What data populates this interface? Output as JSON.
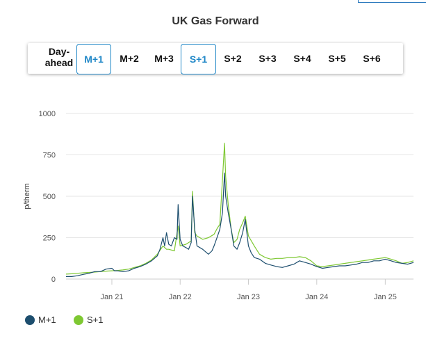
{
  "title": "UK Gas Forward",
  "tabs": [
    {
      "label": "Day-\nahead",
      "active": false
    },
    {
      "label": "M+1",
      "active": true
    },
    {
      "label": "M+2",
      "active": false
    },
    {
      "label": "M+3",
      "active": false
    },
    {
      "label": "S+1",
      "active": true
    },
    {
      "label": "S+2",
      "active": false
    },
    {
      "label": "S+3",
      "active": false
    },
    {
      "label": "S+4",
      "active": false
    },
    {
      "label": "S+5",
      "active": false
    },
    {
      "label": "S+6",
      "active": false
    }
  ],
  "colors": {
    "accent": "#1f87c7",
    "m1": "#1d4e6e",
    "s1": "#7ec832",
    "grid": "#e6e6e6"
  },
  "legend": [
    {
      "name": "M+1",
      "color": "#1d4e6e"
    },
    {
      "name": "S+1",
      "color": "#7ec832"
    }
  ],
  "chart_data": {
    "type": "line",
    "title": "UK Gas Forward",
    "ylabel": "p/therm",
    "xlabel": "",
    "ylim": [
      0,
      1000
    ],
    "xlim": [
      "2020-05-01",
      "2025-06-01"
    ],
    "yticks": [
      0,
      250,
      500,
      750,
      1000
    ],
    "xticks": [
      {
        "date": "2021-01-01",
        "label": "Jan 21"
      },
      {
        "date": "2022-01-01",
        "label": "Jan 22"
      },
      {
        "date": "2023-01-01",
        "label": "Jan 23"
      },
      {
        "date": "2024-01-01",
        "label": "Jan 24"
      },
      {
        "date": "2025-01-01",
        "label": "Jan 25"
      }
    ],
    "grid": true,
    "legend_position": "bottom-left",
    "series": [
      {
        "name": "M+1",
        "x": [
          "2020-05-01",
          "2020-06-01",
          "2020-07-01",
          "2020-08-01",
          "2020-09-01",
          "2020-10-01",
          "2020-11-01",
          "2020-12-01",
          "2021-01-01",
          "2021-01-15",
          "2021-02-01",
          "2021-03-01",
          "2021-04-01",
          "2021-05-01",
          "2021-06-01",
          "2021-07-01",
          "2021-08-01",
          "2021-09-01",
          "2021-09-15",
          "2021-10-01",
          "2021-10-10",
          "2021-10-20",
          "2021-11-01",
          "2021-11-15",
          "2021-12-01",
          "2021-12-15",
          "2021-12-21",
          "2022-01-01",
          "2022-01-15",
          "2022-02-01",
          "2022-02-15",
          "2022-03-01",
          "2022-03-08",
          "2022-03-20",
          "2022-04-01",
          "2022-05-01",
          "2022-06-01",
          "2022-06-20",
          "2022-07-01",
          "2022-07-20",
          "2022-08-01",
          "2022-08-15",
          "2022-08-26",
          "2022-09-01",
          "2022-09-15",
          "2022-10-01",
          "2022-10-15",
          "2022-11-01",
          "2022-11-15",
          "2022-12-01",
          "2022-12-15",
          "2023-01-01",
          "2023-01-15",
          "2023-02-01",
          "2023-03-01",
          "2023-04-01",
          "2023-05-01",
          "2023-06-01",
          "2023-07-01",
          "2023-08-01",
          "2023-09-01",
          "2023-10-01",
          "2023-11-01",
          "2023-12-01",
          "2024-01-01",
          "2024-02-01",
          "2024-03-01",
          "2024-04-01",
          "2024-05-01",
          "2024-06-01",
          "2024-07-01",
          "2024-08-01",
          "2024-09-01",
          "2024-10-01",
          "2024-11-01",
          "2024-12-01",
          "2025-01-01",
          "2025-02-01",
          "2025-03-01",
          "2025-04-01",
          "2025-05-01",
          "2025-06-01"
        ],
        "y": [
          15,
          15,
          20,
          28,
          35,
          45,
          45,
          60,
          65,
          50,
          50,
          45,
          50,
          65,
          75,
          90,
          110,
          140,
          180,
          250,
          200,
          280,
          210,
          200,
          250,
          240,
          450,
          240,
          200,
          190,
          180,
          220,
          500,
          300,
          200,
          180,
          150,
          170,
          200,
          260,
          300,
          400,
          640,
          500,
          400,
          300,
          200,
          180,
          220,
          280,
          360,
          200,
          160,
          130,
          120,
          95,
          85,
          75,
          70,
          80,
          90,
          110,
          100,
          90,
          75,
          65,
          70,
          75,
          80,
          80,
          85,
          90,
          100,
          100,
          110,
          110,
          120,
          110,
          100,
          95,
          90,
          100
        ]
      },
      {
        "name": "S+1",
        "x": [
          "2020-05-01",
          "2020-06-01",
          "2020-07-01",
          "2020-08-01",
          "2020-09-01",
          "2020-10-01",
          "2020-11-01",
          "2020-12-01",
          "2021-01-01",
          "2021-02-01",
          "2021-03-01",
          "2021-04-01",
          "2021-05-01",
          "2021-06-01",
          "2021-07-01",
          "2021-08-01",
          "2021-09-01",
          "2021-10-01",
          "2021-10-20",
          "2021-11-01",
          "2021-12-01",
          "2021-12-21",
          "2022-01-01",
          "2022-02-01",
          "2022-03-01",
          "2022-03-08",
          "2022-03-20",
          "2022-04-01",
          "2022-05-01",
          "2022-06-01",
          "2022-07-01",
          "2022-07-20",
          "2022-08-01",
          "2022-08-15",
          "2022-08-26",
          "2022-09-01",
          "2022-09-15",
          "2022-10-01",
          "2022-10-15",
          "2022-11-01",
          "2022-11-15",
          "2022-12-01",
          "2022-12-15",
          "2023-01-01",
          "2023-02-01",
          "2023-03-01",
          "2023-04-01",
          "2023-05-01",
          "2023-06-01",
          "2023-07-01",
          "2023-08-01",
          "2023-09-01",
          "2023-10-01",
          "2023-11-01",
          "2023-12-01",
          "2024-01-01",
          "2024-02-01",
          "2024-03-01",
          "2024-04-01",
          "2024-05-01",
          "2024-06-01",
          "2024-07-01",
          "2024-08-01",
          "2024-09-01",
          "2024-10-01",
          "2024-11-01",
          "2024-12-01",
          "2025-01-01",
          "2025-02-01",
          "2025-03-01",
          "2025-04-01",
          "2025-05-01",
          "2025-06-01"
        ],
        "y": [
          30,
          32,
          35,
          38,
          40,
          42,
          45,
          48,
          50,
          52,
          55,
          60,
          70,
          80,
          95,
          115,
          150,
          200,
          180,
          180,
          170,
          320,
          200,
          210,
          230,
          530,
          280,
          260,
          240,
          250,
          270,
          310,
          330,
          600,
          820,
          620,
          450,
          300,
          220,
          240,
          300,
          340,
          380,
          260,
          200,
          150,
          130,
          120,
          125,
          125,
          130,
          130,
          135,
          130,
          110,
          80,
          75,
          80,
          85,
          90,
          95,
          100,
          105,
          110,
          115,
          120,
          125,
          130,
          120,
          110,
          95,
          100,
          110
        ]
      }
    ]
  }
}
